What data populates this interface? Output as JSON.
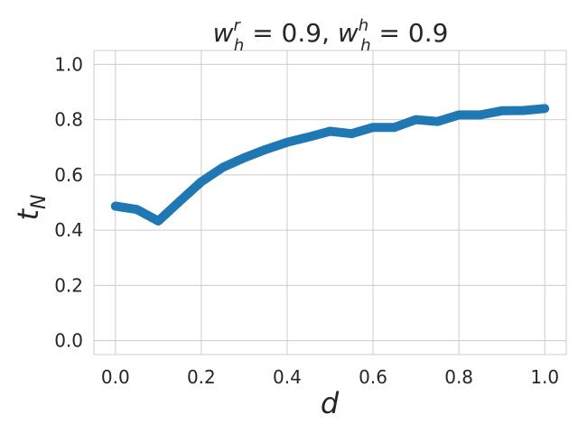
{
  "chart_data": {
    "type": "line",
    "title": {
      "parts": [
        {
          "base": "w",
          "sup": "r",
          "sub": "h",
          "rest": " = 0.9, "
        },
        {
          "base": "w",
          "sup": "h",
          "sub": "h",
          "rest": " = 0.9"
        }
      ]
    },
    "xlabel": "d",
    "ylabel": {
      "base": "t",
      "sub": "N"
    },
    "xlim": [
      -0.05,
      1.05
    ],
    "ylim": [
      -0.05,
      1.05
    ],
    "xticks": [
      0.0,
      0.2,
      0.4,
      0.6,
      0.8,
      1.0
    ],
    "yticks": [
      0.0,
      0.2,
      0.4,
      0.6,
      0.8,
      1.0
    ],
    "grid": true,
    "legend": "none",
    "series": [
      {
        "color": "#1f77b4",
        "x": [
          0.0,
          0.05,
          0.1,
          0.15,
          0.2,
          0.25,
          0.3,
          0.35,
          0.4,
          0.45,
          0.5,
          0.55,
          0.6,
          0.65,
          0.7,
          0.75,
          0.8,
          0.85,
          0.9,
          0.95,
          1.0
        ],
        "y": [
          0.487,
          0.475,
          0.433,
          0.505,
          0.575,
          0.627,
          0.662,
          0.692,
          0.718,
          0.737,
          0.758,
          0.749,
          0.772,
          0.772,
          0.8,
          0.793,
          0.817,
          0.817,
          0.832,
          0.833,
          0.84
        ]
      }
    ]
  }
}
